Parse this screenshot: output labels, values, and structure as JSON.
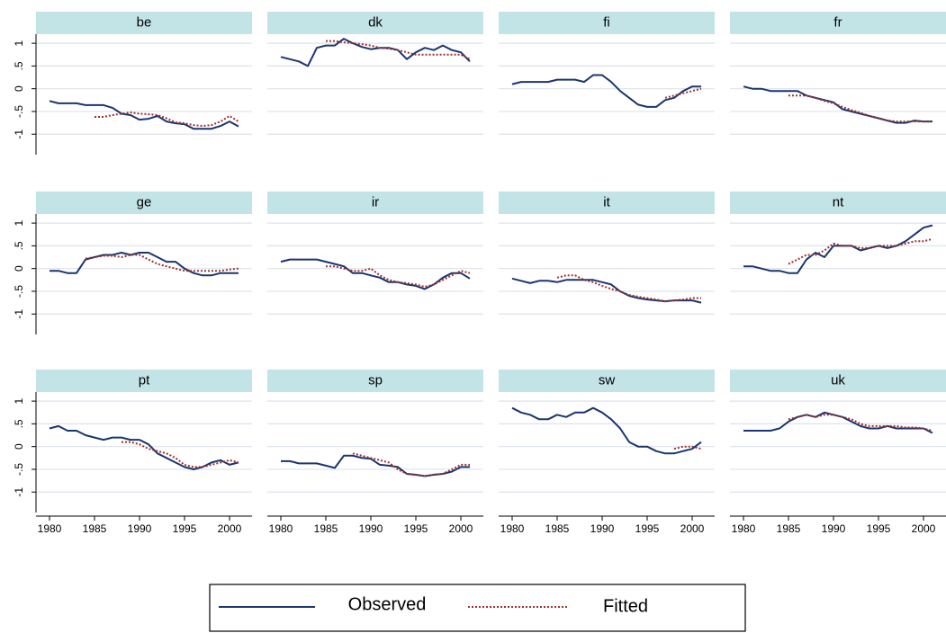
{
  "chart_data": {
    "type": "line",
    "x": [
      1980,
      1981,
      1982,
      1983,
      1984,
      1985,
      1986,
      1987,
      1988,
      1989,
      1990,
      1991,
      1992,
      1993,
      1994,
      1995,
      1996,
      1997,
      1998,
      1999,
      2000,
      2001
    ],
    "xlim": [
      1978.5,
      2002.5
    ],
    "xticks": [
      1980,
      1985,
      1990,
      1995,
      2000
    ],
    "ylim": [
      -1.45,
      1.2
    ],
    "yticks": [
      1,
      {
        "value": 0.5,
        "label": ".5"
      },
      0,
      {
        "value": -0.5,
        "label": "-.5"
      },
      -1
    ],
    "grid": true,
    "legend": "bottom",
    "series": [
      {
        "name": "Observed",
        "color": "#1a3570",
        "style": "solid"
      },
      {
        "name": "Fitted",
        "color": "#a0302e",
        "style": "dotted"
      }
    ],
    "panels": [
      {
        "title": "be",
        "series": [
          {
            "values": [
              -0.27,
              -0.32,
              -0.32,
              -0.32,
              -0.36,
              -0.36,
              -0.36,
              -0.42,
              -0.55,
              -0.58,
              -0.68,
              -0.66,
              -0.6,
              -0.72,
              -0.76,
              -0.78,
              -0.88,
              -0.88,
              -0.88,
              -0.82,
              -0.72,
              -0.83
            ]
          },
          {
            "values": [
              null,
              null,
              null,
              null,
              null,
              -0.62,
              -0.62,
              -0.58,
              -0.55,
              -0.52,
              -0.55,
              -0.56,
              -0.58,
              -0.65,
              -0.74,
              -0.76,
              -0.8,
              -0.82,
              -0.8,
              -0.72,
              -0.6,
              -0.72
            ]
          }
        ]
      },
      {
        "title": "dk",
        "series": [
          {
            "values": [
              0.7,
              0.65,
              0.6,
              0.5,
              0.9,
              0.95,
              0.95,
              1.1,
              1.0,
              0.92,
              0.87,
              0.9,
              0.9,
              0.85,
              0.65,
              0.8,
              0.9,
              0.85,
              0.95,
              0.85,
              0.8,
              0.6
            ]
          },
          {
            "values": [
              null,
              null,
              null,
              null,
              null,
              1.05,
              1.05,
              1.02,
              1.0,
              0.98,
              0.95,
              0.9,
              0.88,
              0.85,
              0.8,
              0.75,
              0.75,
              0.75,
              0.75,
              0.75,
              0.75,
              0.65
            ]
          }
        ]
      },
      {
        "title": "fi",
        "series": [
          {
            "values": [
              0.1,
              0.15,
              0.15,
              0.15,
              0.15,
              0.2,
              0.2,
              0.2,
              0.15,
              0.3,
              0.3,
              0.15,
              -0.05,
              -0.2,
              -0.35,
              -0.4,
              -0.4,
              -0.25,
              -0.2,
              -0.05,
              0.05,
              0.05
            ]
          },
          {
            "values": [
              null,
              null,
              null,
              null,
              null,
              null,
              null,
              null,
              null,
              null,
              null,
              null,
              null,
              null,
              null,
              null,
              null,
              -0.2,
              -0.15,
              -0.1,
              -0.05,
              0.0
            ]
          }
        ]
      },
      {
        "title": "fr",
        "series": [
          {
            "values": [
              0.05,
              0.0,
              0.0,
              -0.05,
              -0.05,
              -0.05,
              -0.05,
              -0.15,
              -0.2,
              -0.25,
              -0.3,
              -0.45,
              -0.5,
              -0.55,
              -0.6,
              -0.65,
              -0.7,
              -0.75,
              -0.75,
              -0.7,
              -0.72,
              -0.72
            ]
          },
          {
            "values": [
              null,
              null,
              null,
              null,
              null,
              -0.15,
              -0.15,
              -0.15,
              -0.2,
              -0.27,
              -0.32,
              -0.4,
              -0.47,
              -0.53,
              -0.6,
              -0.65,
              -0.7,
              -0.72,
              -0.72,
              -0.72,
              -0.72,
              -0.72
            ]
          }
        ]
      },
      {
        "title": "ge",
        "series": [
          {
            "values": [
              -0.05,
              -0.05,
              -0.1,
              -0.1,
              0.2,
              0.25,
              0.3,
              0.3,
              0.35,
              0.3,
              0.35,
              0.35,
              0.25,
              0.15,
              0.15,
              0.0,
              -0.1,
              -0.15,
              -0.15,
              -0.1,
              -0.1,
              -0.1
            ]
          },
          {
            "values": [
              null,
              null,
              null,
              null,
              0.22,
              0.25,
              0.28,
              0.28,
              0.25,
              0.3,
              0.3,
              0.2,
              0.1,
              0.05,
              0.0,
              -0.05,
              -0.05,
              -0.05,
              -0.05,
              -0.05,
              -0.02,
              0.0
            ]
          }
        ]
      },
      {
        "title": "ir",
        "series": [
          {
            "values": [
              0.15,
              0.2,
              0.2,
              0.2,
              0.2,
              0.15,
              0.1,
              0.05,
              -0.1,
              -0.1,
              -0.15,
              -0.2,
              -0.3,
              -0.3,
              -0.35,
              -0.38,
              -0.45,
              -0.35,
              -0.2,
              -0.1,
              -0.1,
              -0.22
            ]
          },
          {
            "values": [
              null,
              null,
              null,
              null,
              null,
              0.05,
              0.05,
              0.0,
              -0.05,
              -0.05,
              0.0,
              -0.15,
              -0.25,
              -0.3,
              -0.32,
              -0.35,
              -0.4,
              -0.35,
              -0.25,
              -0.15,
              -0.05,
              -0.1
            ]
          }
        ]
      },
      {
        "title": "it",
        "series": [
          {
            "values": [
              -0.22,
              -0.27,
              -0.32,
              -0.27,
              -0.27,
              -0.3,
              -0.25,
              -0.25,
              -0.25,
              -0.25,
              -0.3,
              -0.35,
              -0.5,
              -0.6,
              -0.65,
              -0.68,
              -0.7,
              -0.72,
              -0.7,
              -0.7,
              -0.7,
              -0.75
            ]
          },
          {
            "values": [
              null,
              null,
              null,
              null,
              null,
              -0.2,
              -0.15,
              -0.15,
              -0.25,
              -0.3,
              -0.38,
              -0.45,
              -0.5,
              -0.58,
              -0.62,
              -0.65,
              -0.68,
              -0.72,
              -0.7,
              -0.68,
              -0.65,
              -0.65
            ]
          }
        ]
      },
      {
        "title": "nt",
        "series": [
          {
            "values": [
              0.05,
              0.05,
              0.0,
              -0.05,
              -0.05,
              -0.1,
              -0.1,
              0.2,
              0.35,
              0.25,
              0.5,
              0.5,
              0.5,
              0.4,
              0.45,
              0.5,
              0.45,
              0.5,
              0.6,
              0.75,
              0.9,
              0.95
            ]
          },
          {
            "values": [
              null,
              null,
              null,
              null,
              null,
              0.1,
              0.2,
              0.3,
              0.3,
              0.4,
              0.55,
              0.5,
              0.5,
              0.45,
              0.45,
              0.5,
              0.5,
              0.5,
              0.55,
              0.6,
              0.6,
              0.65
            ]
          }
        ]
      },
      {
        "title": "pt",
        "series": [
          {
            "values": [
              0.4,
              0.45,
              0.35,
              0.35,
              0.25,
              0.2,
              0.15,
              0.2,
              0.2,
              0.15,
              0.15,
              0.05,
              -0.15,
              -0.25,
              -0.35,
              -0.45,
              -0.5,
              -0.45,
              -0.35,
              -0.3,
              -0.4,
              -0.35
            ]
          },
          {
            "values": [
              null,
              null,
              null,
              null,
              null,
              null,
              null,
              null,
              0.1,
              0.1,
              0.05,
              -0.05,
              -0.1,
              -0.15,
              -0.25,
              -0.4,
              -0.45,
              -0.45,
              -0.4,
              -0.35,
              -0.3,
              -0.35
            ]
          }
        ]
      },
      {
        "title": "sp",
        "series": [
          {
            "values": [
              -0.32,
              -0.32,
              -0.37,
              -0.37,
              -0.37,
              -0.42,
              -0.47,
              -0.2,
              -0.2,
              -0.25,
              -0.27,
              -0.4,
              -0.42,
              -0.45,
              -0.6,
              -0.62,
              -0.65,
              -0.62,
              -0.6,
              -0.55,
              -0.45,
              -0.45
            ]
          },
          {
            "values": [
              null,
              null,
              null,
              null,
              null,
              null,
              null,
              null,
              -0.15,
              -0.2,
              -0.25,
              -0.3,
              -0.35,
              -0.5,
              -0.6,
              -0.62,
              -0.65,
              -0.62,
              -0.6,
              -0.5,
              -0.4,
              -0.4
            ]
          }
        ]
      },
      {
        "title": "sw",
        "series": [
          {
            "values": [
              0.85,
              0.75,
              0.7,
              0.6,
              0.6,
              0.7,
              0.65,
              0.75,
              0.75,
              0.85,
              0.75,
              0.6,
              0.4,
              0.1,
              0.0,
              0.0,
              -0.1,
              -0.15,
              -0.15,
              -0.1,
              -0.05,
              0.1
            ]
          },
          {
            "values": [
              null,
              null,
              null,
              null,
              null,
              null,
              null,
              null,
              null,
              null,
              null,
              null,
              null,
              null,
              null,
              null,
              null,
              null,
              -0.05,
              0.0,
              0.0,
              -0.05
            ]
          }
        ]
      },
      {
        "title": "uk",
        "series": [
          {
            "values": [
              0.35,
              0.35,
              0.35,
              0.35,
              0.4,
              0.55,
              0.65,
              0.7,
              0.65,
              0.75,
              0.7,
              0.65,
              0.55,
              0.45,
              0.4,
              0.4,
              0.45,
              0.4,
              0.4,
              0.4,
              0.4,
              0.3
            ]
          },
          {
            "values": [
              null,
              null,
              null,
              null,
              null,
              0.6,
              0.65,
              0.7,
              0.65,
              0.7,
              0.7,
              0.65,
              0.6,
              0.5,
              0.45,
              0.45,
              0.45,
              0.45,
              0.42,
              0.42,
              0.4,
              0.35
            ]
          }
        ]
      }
    ]
  }
}
